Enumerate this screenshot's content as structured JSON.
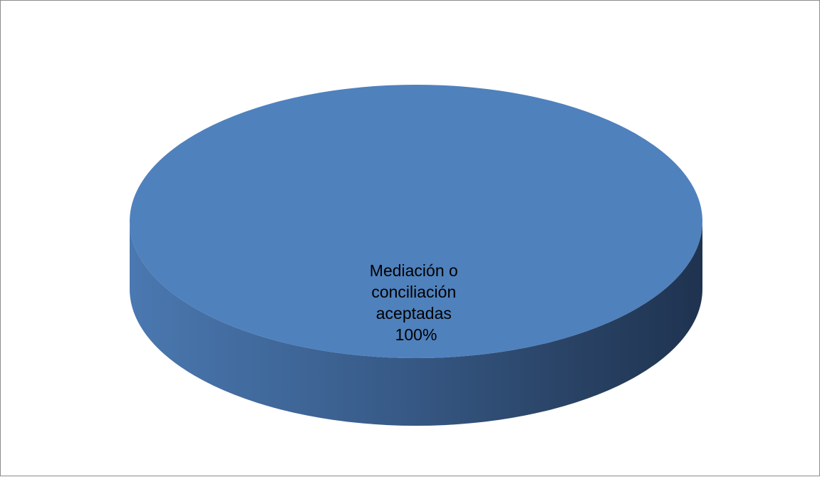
{
  "chart_data": {
    "type": "pie",
    "style": "3d",
    "title": "",
    "legend": "none",
    "slices": [
      {
        "label_lines": [
          "Mediación o",
          "conciliación",
          "aceptadas"
        ],
        "value": 100,
        "value_label": "100%",
        "color": "#4f81bd"
      }
    ]
  }
}
